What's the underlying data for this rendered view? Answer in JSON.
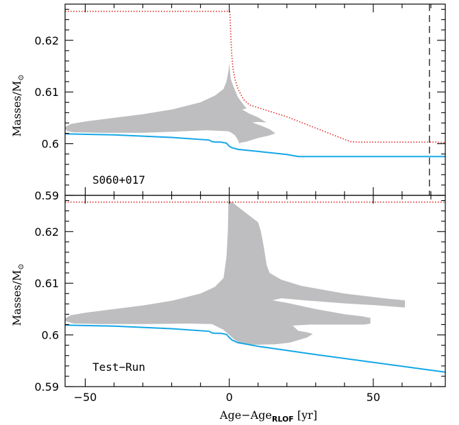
{
  "chart_data": {
    "type": "line",
    "xlabel": "Age−Age",
    "xlabel_sub": "RLOF",
    "xlabel_unit": " [yr]",
    "ylabel": "Masses/M",
    "ylabel_symbol": "⊙",
    "xlim": [
      -57,
      75
    ],
    "ylim": [
      0.59,
      0.627
    ],
    "xticks": [
      -50,
      0,
      50
    ],
    "yticks": [
      0.59,
      0.6,
      0.61,
      0.62
    ],
    "colors": {
      "blue": "#12a6e6",
      "red": "#e0261e",
      "gray": "#bebec0",
      "dashed": "#000000"
    },
    "panels": [
      {
        "label": "S060+017",
        "vline_x": 69.5,
        "blue": [
          [
            -57,
            0.6019
          ],
          [
            -40,
            0.6017
          ],
          [
            -20,
            0.6012
          ],
          [
            -7,
            0.6007
          ],
          [
            -6,
            0.6004
          ],
          [
            -5,
            0.6003
          ],
          [
            -3,
            0.6003
          ],
          [
            -1,
            0.6001
          ],
          [
            0,
            0.5995
          ],
          [
            1,
            0.5992
          ],
          [
            3,
            0.5989
          ],
          [
            10,
            0.5985
          ],
          [
            20,
            0.5979
          ],
          [
            24,
            0.5975
          ],
          [
            40,
            0.5975
          ],
          [
            75,
            0.5975
          ]
        ],
        "red": [
          [
            -57,
            0.6256
          ],
          [
            -0.3,
            0.6256
          ],
          [
            0.2,
            0.6255
          ],
          [
            0.6,
            0.62
          ],
          [
            0.9,
            0.617
          ],
          [
            1.3,
            0.6145
          ],
          [
            2,
            0.6124
          ],
          [
            3,
            0.6106
          ],
          [
            5,
            0.6085
          ],
          [
            7,
            0.6075
          ],
          [
            20,
            0.6052
          ],
          [
            42,
            0.6004
          ],
          [
            45,
            0.6003
          ],
          [
            72,
            0.6003
          ],
          [
            75,
            0.6002
          ]
        ],
        "shade": [
          [
            -57,
            0.6032
          ],
          [
            -55,
            0.6038
          ],
          [
            -50,
            0.6043
          ],
          [
            -40,
            0.605
          ],
          [
            -30,
            0.6057
          ],
          [
            -20,
            0.6066
          ],
          [
            -10,
            0.608
          ],
          [
            -5,
            0.6093
          ],
          [
            -2,
            0.6106
          ],
          [
            -1,
            0.612
          ],
          [
            -0.3,
            0.614
          ],
          [
            0,
            0.6155
          ],
          [
            0.5,
            0.6125
          ],
          [
            1.5,
            0.611
          ],
          [
            3,
            0.609
          ],
          [
            5,
            0.6075
          ],
          [
            6,
            0.6068
          ],
          [
            4.5,
            0.6066
          ],
          [
            7,
            0.6058
          ],
          [
            10,
            0.6051
          ],
          [
            12,
            0.6044
          ],
          [
            13,
            0.6041
          ],
          [
            10,
            0.6042
          ],
          [
            8,
            0.6041
          ],
          [
            11,
            0.6035
          ],
          [
            14,
            0.6028
          ],
          [
            16,
            0.602
          ],
          [
            14,
            0.6016
          ],
          [
            10,
            0.6011
          ],
          [
            6,
            0.6004
          ],
          [
            4,
            0.6002
          ],
          [
            3.5,
            0.6
          ],
          [
            3,
            0.6007
          ],
          [
            2,
            0.6016
          ],
          [
            0.5,
            0.6022
          ],
          [
            -0.5,
            0.6024
          ],
          [
            -8,
            0.6026
          ],
          [
            -20,
            0.6023
          ],
          [
            -30,
            0.6021
          ],
          [
            -45,
            0.6021
          ],
          [
            -54,
            0.6022
          ],
          [
            -56,
            0.6024
          ],
          [
            -57,
            0.6028
          ]
        ]
      },
      {
        "label": "Test−Run",
        "blue": [
          [
            -57,
            0.6019
          ],
          [
            -40,
            0.6017
          ],
          [
            -20,
            0.6012
          ],
          [
            -7,
            0.6007
          ],
          [
            -6,
            0.6004
          ],
          [
            -5,
            0.6003
          ],
          [
            -3,
            0.6003
          ],
          [
            -1,
            0.6001
          ],
          [
            0,
            0.5995
          ],
          [
            1,
            0.599
          ],
          [
            3,
            0.5985
          ],
          [
            10,
            0.5978
          ],
          [
            30,
            0.5962
          ],
          [
            50,
            0.5947
          ],
          [
            75,
            0.5928
          ]
        ],
        "red": [
          [
            -57,
            0.6257
          ],
          [
            75,
            0.6257
          ]
        ],
        "shade": [
          [
            -57,
            0.6032
          ],
          [
            -55,
            0.6038
          ],
          [
            -50,
            0.6043
          ],
          [
            -40,
            0.605
          ],
          [
            -30,
            0.6057
          ],
          [
            -20,
            0.6066
          ],
          [
            -10,
            0.608
          ],
          [
            -5,
            0.6093
          ],
          [
            -2,
            0.611
          ],
          [
            -1,
            0.615
          ],
          [
            -0.5,
            0.62
          ],
          [
            -0.3,
            0.6257
          ],
          [
            1,
            0.6257
          ],
          [
            3,
            0.6248
          ],
          [
            6,
            0.6235
          ],
          [
            10,
            0.6218
          ],
          [
            11,
            0.62
          ],
          [
            12,
            0.617
          ],
          [
            13,
            0.6135
          ],
          [
            14,
            0.612
          ],
          [
            18,
            0.6107
          ],
          [
            25,
            0.6095
          ],
          [
            40,
            0.608
          ],
          [
            55,
            0.607
          ],
          [
            61,
            0.6067
          ],
          [
            61,
            0.6053
          ],
          [
            52,
            0.6057
          ],
          [
            40,
            0.6061
          ],
          [
            28,
            0.6066
          ],
          [
            18,
            0.6071
          ],
          [
            15,
            0.6067
          ],
          [
            20,
            0.6062
          ],
          [
            30,
            0.605
          ],
          [
            40,
            0.604
          ],
          [
            46,
            0.6036
          ],
          [
            49,
            0.6033
          ],
          [
            49,
            0.6022
          ],
          [
            47,
            0.602
          ],
          [
            40,
            0.602
          ],
          [
            33,
            0.602
          ],
          [
            28,
            0.602
          ],
          [
            22,
            0.6018
          ],
          [
            24,
            0.6008
          ],
          [
            27,
            0.6005
          ],
          [
            29,
            0.6002
          ],
          [
            27,
            0.5995
          ],
          [
            24,
            0.599
          ],
          [
            21,
            0.5985
          ],
          [
            16,
            0.5982
          ],
          [
            10,
            0.5981
          ],
          [
            6,
            0.5981
          ],
          [
            4,
            0.5984
          ],
          [
            2,
            0.599
          ],
          [
            0,
            0.6
          ],
          [
            -2,
            0.601
          ],
          [
            -6,
            0.6021
          ],
          [
            -15,
            0.6022
          ],
          [
            -30,
            0.6021
          ],
          [
            -45,
            0.6021
          ],
          [
            -54,
            0.6022
          ],
          [
            -57,
            0.6027
          ]
        ]
      }
    ]
  }
}
